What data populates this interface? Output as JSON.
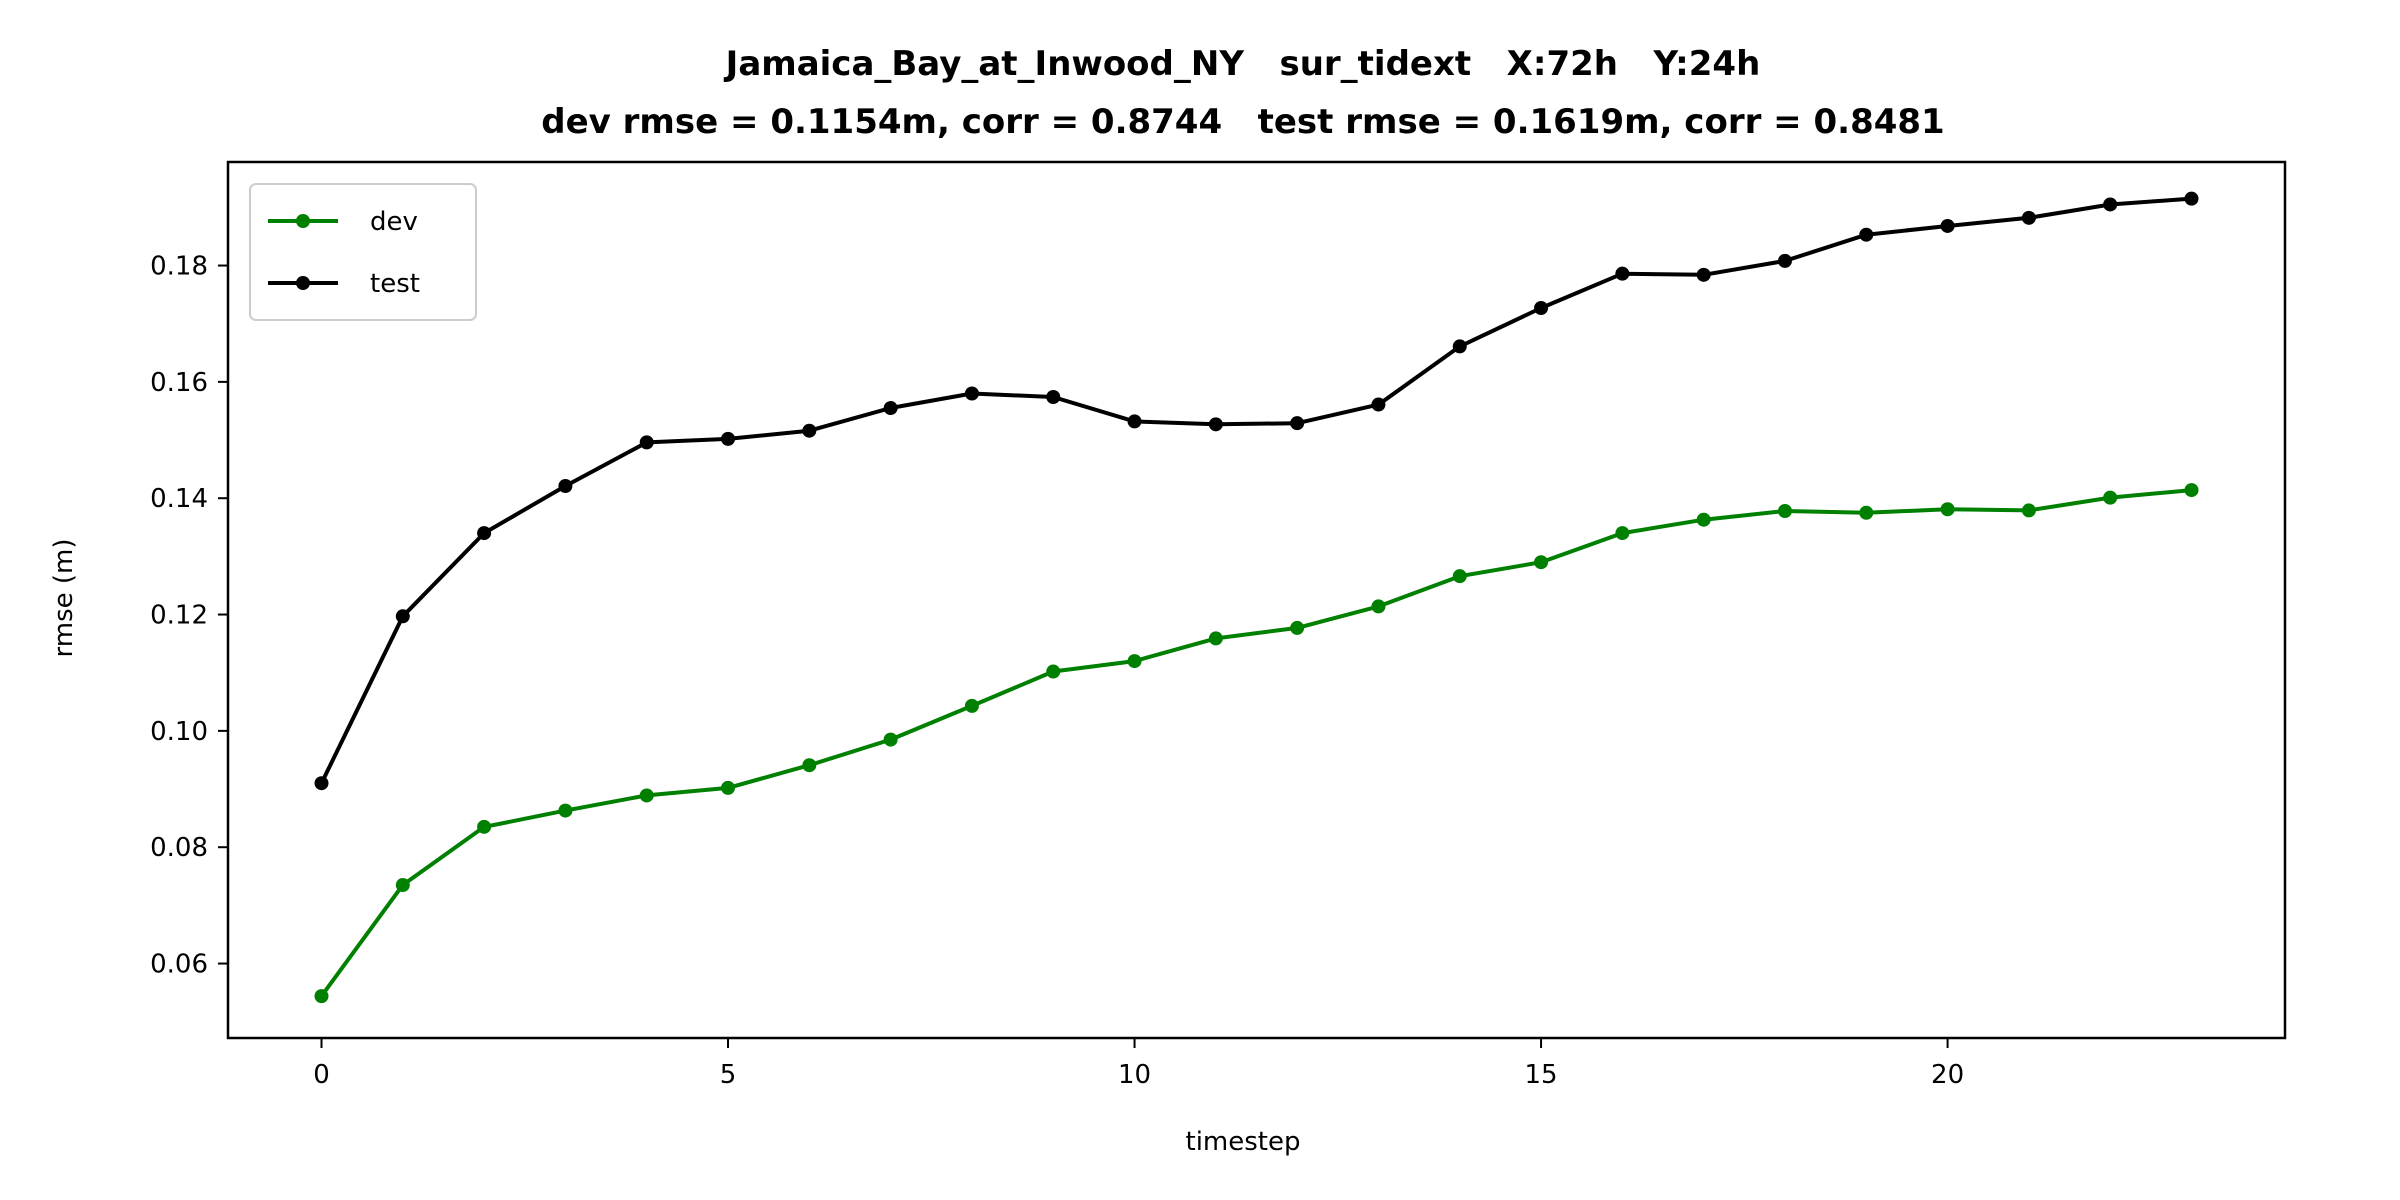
{
  "chart_data": {
    "type": "line",
    "title": "Jamaica_Bay_at_Inwood_NY   sur_tidext   X:72h   Y:24h",
    "subtitle": "dev rmse = 0.1154m, corr = 0.8744   test rmse = 0.1619m, corr = 0.8481",
    "xlabel": "timestep",
    "ylabel": "rmse (m)",
    "xlim": [
      -1.15,
      24.15
    ],
    "ylim": [
      0.0472,
      0.1978
    ],
    "xticks": [
      0,
      5,
      10,
      15,
      20
    ],
    "xtick_labels": [
      "0",
      "5",
      "10",
      "15",
      "20"
    ],
    "yticks": [
      0.06,
      0.08,
      0.1,
      0.12,
      0.14,
      0.16,
      0.18
    ],
    "ytick_labels": [
      "0.06",
      "0.08",
      "0.10",
      "0.12",
      "0.14",
      "0.16",
      "0.18"
    ],
    "grid": false,
    "legend_position": "top-left",
    "x": [
      0,
      1,
      2,
      3,
      4,
      5,
      6,
      7,
      8,
      9,
      10,
      11,
      12,
      13,
      14,
      15,
      16,
      17,
      18,
      19,
      20,
      21,
      22,
      23
    ],
    "series": [
      {
        "name": "dev",
        "color": "#008000",
        "values": [
          0.0544,
          0.0735,
          0.0835,
          0.0863,
          0.0889,
          0.0902,
          0.0941,
          0.0985,
          0.1043,
          0.1102,
          0.112,
          0.1159,
          0.1177,
          0.1214,
          0.1266,
          0.129,
          0.134,
          0.1363,
          0.1378,
          0.1375,
          0.1381,
          0.1379,
          0.1401,
          0.1414
        ]
      },
      {
        "name": "test",
        "color": "#000000",
        "values": [
          0.091,
          0.1197,
          0.134,
          0.1421,
          0.1496,
          0.1502,
          0.1516,
          0.1555,
          0.158,
          0.1574,
          0.1532,
          0.1527,
          0.1529,
          0.1561,
          0.1661,
          0.1727,
          0.1786,
          0.1784,
          0.1808,
          0.1853,
          0.1868,
          0.1882,
          0.1905,
          0.1915
        ]
      }
    ]
  }
}
